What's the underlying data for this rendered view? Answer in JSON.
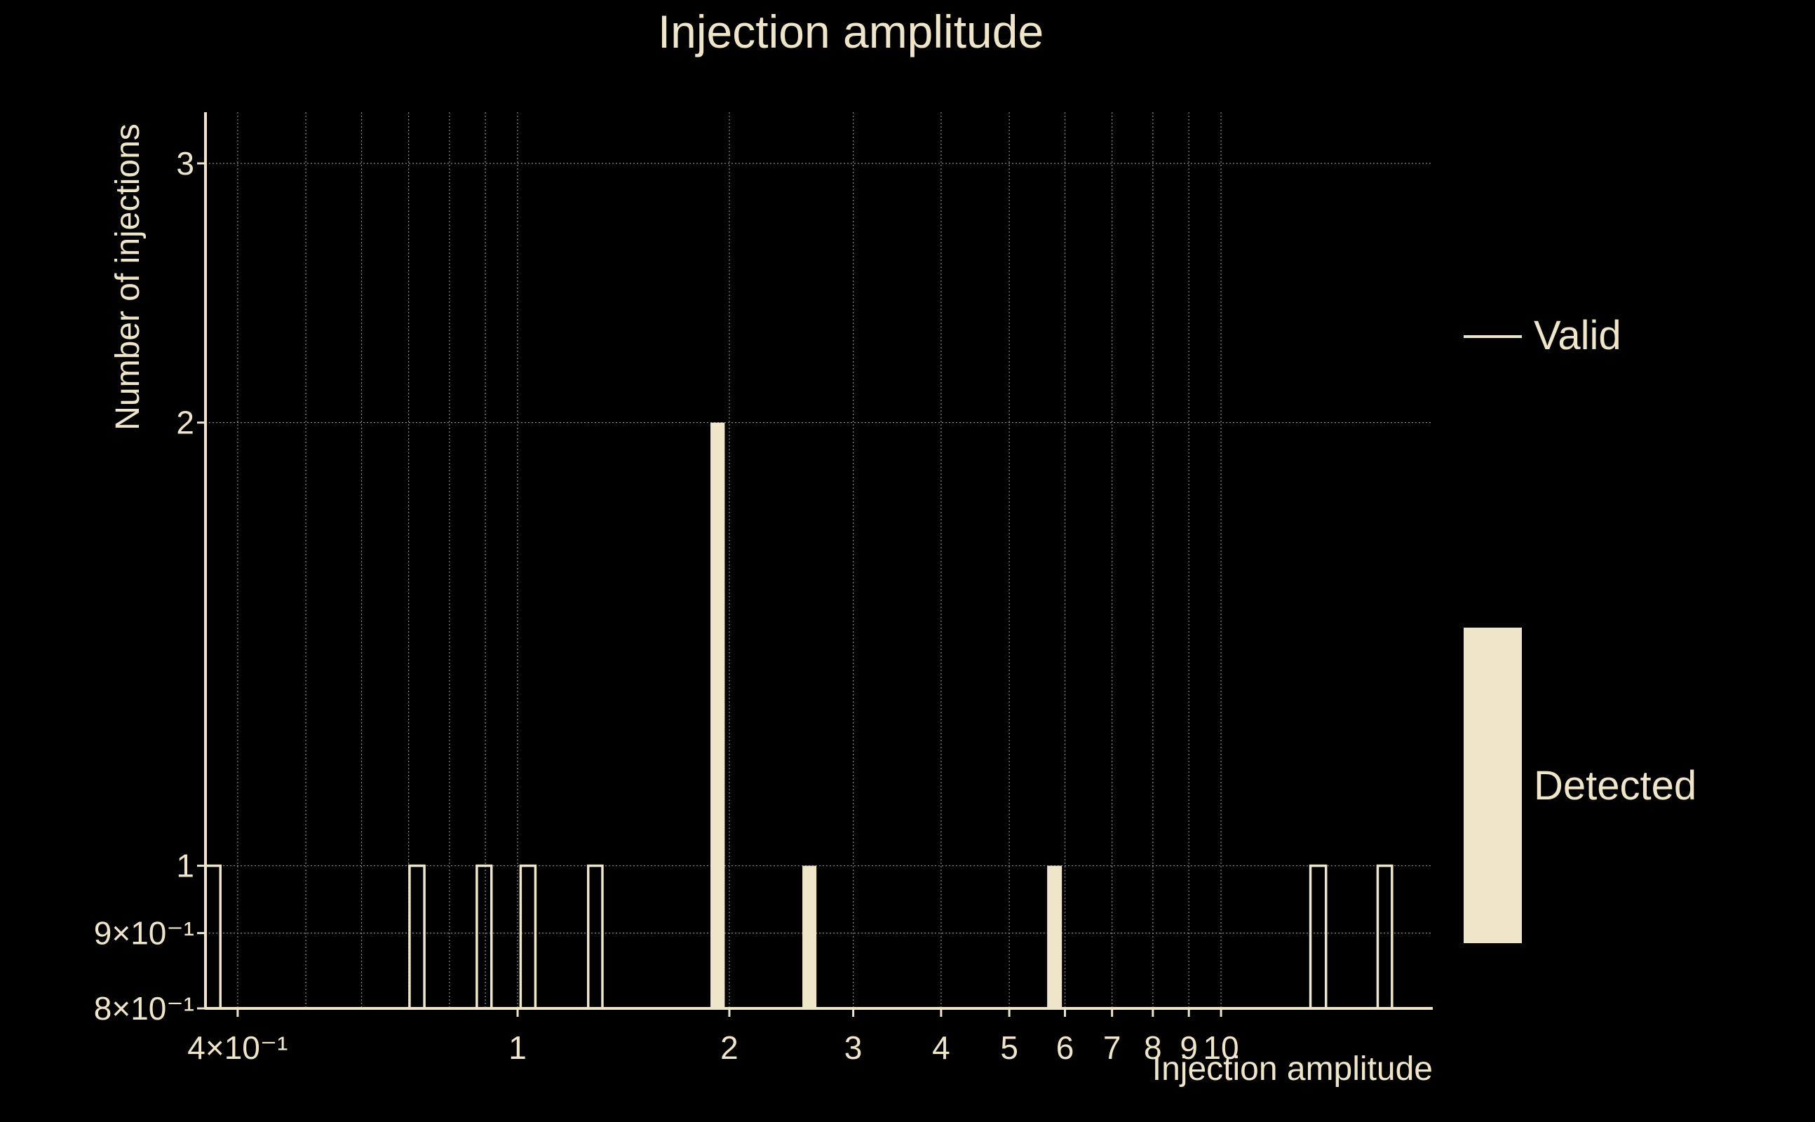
{
  "chart_data": {
    "type": "bar",
    "title": "Injection amplitude",
    "xlabel": "Injection amplitude",
    "ylabel": "Number of injections",
    "x_scale": "log",
    "y_scale": "log",
    "xlim": [
      0.36,
      20.0
    ],
    "ylim": [
      0.8,
      3.25
    ],
    "grid": true,
    "legend_position": "right",
    "x_ticks": [
      {
        "value": 0.4,
        "label": "4×10⁻¹"
      },
      {
        "value": 1,
        "label": "1"
      },
      {
        "value": 2,
        "label": "2"
      },
      {
        "value": 3,
        "label": "3"
      },
      {
        "value": 4,
        "label": "4"
      },
      {
        "value": 5,
        "label": "5"
      },
      {
        "value": 6,
        "label": "6"
      },
      {
        "value": 7,
        "label": "7"
      },
      {
        "value": 8,
        "label": "8"
      },
      {
        "value": 9,
        "label": "9"
      },
      {
        "value": 10,
        "label": "10"
      }
    ],
    "x_grid": [
      0.4,
      0.5,
      0.6,
      0.7,
      0.8,
      0.9,
      1,
      2,
      3,
      4,
      5,
      6,
      7,
      8,
      9,
      10
    ],
    "y_ticks": [
      {
        "value": 0.8,
        "label": "8×10⁻¹"
      },
      {
        "value": 0.9,
        "label": "9×10⁻¹"
      },
      {
        "value": 1,
        "label": "1"
      },
      {
        "value": 2,
        "label": "2"
      },
      {
        "value": 3,
        "label": "3"
      }
    ],
    "series": [
      {
        "name": "Valid",
        "style": "outline",
        "bars": [
          {
            "x0": 0.36,
            "x1": 0.378,
            "value": 1
          },
          {
            "x0": 0.702,
            "x1": 0.737,
            "value": 1
          },
          {
            "x0": 0.875,
            "x1": 0.918,
            "value": 1
          },
          {
            "x0": 1.01,
            "x1": 1.06,
            "value": 1
          },
          {
            "x0": 1.26,
            "x1": 1.32,
            "value": 1
          },
          {
            "x0": 13.4,
            "x1": 14.1,
            "value": 1
          },
          {
            "x0": 16.7,
            "x1": 17.5,
            "value": 1
          }
        ]
      },
      {
        "name": "Detected",
        "style": "filled",
        "bars": [
          {
            "x0": 1.88,
            "x1": 1.97,
            "value": 2
          },
          {
            "x0": 2.54,
            "x1": 2.66,
            "value": 1
          },
          {
            "x0": 5.66,
            "x1": 5.94,
            "value": 1
          }
        ]
      }
    ]
  },
  "colors": {
    "background": "#000000",
    "foreground": "#efe5c8",
    "grid": "#8a8a8a"
  }
}
